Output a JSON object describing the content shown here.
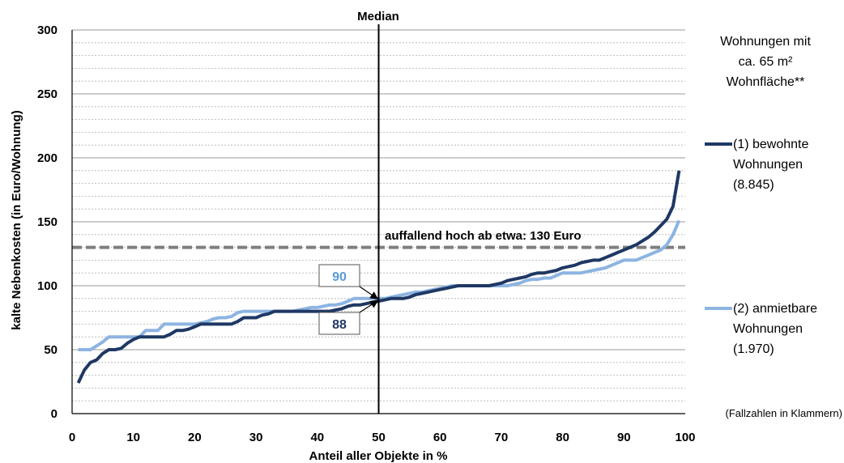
{
  "chart_data": {
    "type": "line",
    "title": "",
    "xlabel": "Anteil aller Objekte in %",
    "ylabel": "kalte Nebenkosten (in Euro/Wohnung)",
    "xlim": [
      0,
      100
    ],
    "ylim": [
      0,
      300
    ],
    "x_ticks": [
      0,
      10,
      20,
      30,
      40,
      50,
      60,
      70,
      80,
      90,
      100
    ],
    "y_ticks": [
      0,
      50,
      100,
      150,
      200,
      250,
      300
    ],
    "grid": "horizontal dashed, every 10 Euro",
    "legend_position": "right",
    "legend_title": "Wohnungen mit ca. 65 m² Wohnfläche**",
    "note": "(Fallzahlen in Klammern)",
    "median": {
      "x": 50,
      "label": "Median"
    },
    "threshold": {
      "y": 130,
      "label": "auffallend hoch ab etwa: 130 Euro",
      "color": "#7f7f7f"
    },
    "callouts": [
      {
        "text": "90",
        "series": 1,
        "value": 90,
        "color": "#5b9bd5"
      },
      {
        "text": "88",
        "series": 0,
        "value": 88,
        "color": "#1f3864"
      }
    ],
    "series": [
      {
        "name": "(1) bewohnte Wohnungen (8.845)",
        "color": "#1f3864",
        "points": [
          [
            1,
            24
          ],
          [
            2,
            34
          ],
          [
            3,
            40
          ],
          [
            4,
            42
          ],
          [
            5,
            47
          ],
          [
            6,
            50
          ],
          [
            7,
            50
          ],
          [
            8,
            51
          ],
          [
            9,
            55
          ],
          [
            10,
            58
          ],
          [
            11,
            60
          ],
          [
            12,
            60
          ],
          [
            13,
            60
          ],
          [
            14,
            60
          ],
          [
            15,
            60
          ],
          [
            16,
            62
          ],
          [
            17,
            65
          ],
          [
            18,
            65
          ],
          [
            19,
            66
          ],
          [
            20,
            68
          ],
          [
            21,
            70
          ],
          [
            22,
            70
          ],
          [
            23,
            70
          ],
          [
            24,
            70
          ],
          [
            25,
            70
          ],
          [
            26,
            70
          ],
          [
            27,
            72
          ],
          [
            28,
            75
          ],
          [
            29,
            75
          ],
          [
            30,
            75
          ],
          [
            31,
            77
          ],
          [
            32,
            78
          ],
          [
            33,
            80
          ],
          [
            34,
            80
          ],
          [
            35,
            80
          ],
          [
            36,
            80
          ],
          [
            37,
            80
          ],
          [
            38,
            80
          ],
          [
            39,
            80
          ],
          [
            40,
            80
          ],
          [
            41,
            80
          ],
          [
            42,
            80
          ],
          [
            43,
            81
          ],
          [
            44,
            82
          ],
          [
            45,
            84
          ],
          [
            46,
            85
          ],
          [
            47,
            85
          ],
          [
            48,
            86
          ],
          [
            49,
            87
          ],
          [
            50,
            88
          ],
          [
            51,
            89
          ],
          [
            52,
            90
          ],
          [
            53,
            90
          ],
          [
            54,
            90
          ],
          [
            55,
            91
          ],
          [
            56,
            93
          ],
          [
            57,
            94
          ],
          [
            58,
            95
          ],
          [
            59,
            96
          ],
          [
            60,
            97
          ],
          [
            61,
            98
          ],
          [
            62,
            99
          ],
          [
            63,
            100
          ],
          [
            64,
            100
          ],
          [
            65,
            100
          ],
          [
            66,
            100
          ],
          [
            67,
            100
          ],
          [
            68,
            100
          ],
          [
            69,
            101
          ],
          [
            70,
            102
          ],
          [
            71,
            104
          ],
          [
            72,
            105
          ],
          [
            73,
            106
          ],
          [
            74,
            107
          ],
          [
            75,
            109
          ],
          [
            76,
            110
          ],
          [
            77,
            110
          ],
          [
            78,
            111
          ],
          [
            79,
            112
          ],
          [
            80,
            114
          ],
          [
            81,
            115
          ],
          [
            82,
            116
          ],
          [
            83,
            118
          ],
          [
            84,
            119
          ],
          [
            85,
            120
          ],
          [
            86,
            120
          ],
          [
            87,
            122
          ],
          [
            88,
            124
          ],
          [
            89,
            126
          ],
          [
            90,
            128
          ],
          [
            91,
            130
          ],
          [
            92,
            132
          ],
          [
            93,
            135
          ],
          [
            94,
            138
          ],
          [
            95,
            142
          ],
          [
            96,
            147
          ],
          [
            97,
            152
          ],
          [
            98,
            162
          ],
          [
            99,
            190
          ]
        ]
      },
      {
        "name": "(2) anmietbare Wohnungen (1.970)",
        "color": "#8db4e2",
        "points": [
          [
            1,
            50
          ],
          [
            2,
            50
          ],
          [
            3,
            50
          ],
          [
            4,
            53
          ],
          [
            5,
            56
          ],
          [
            6,
            60
          ],
          [
            7,
            60
          ],
          [
            8,
            60
          ],
          [
            9,
            60
          ],
          [
            10,
            60
          ],
          [
            11,
            60
          ],
          [
            12,
            65
          ],
          [
            13,
            65
          ],
          [
            14,
            65
          ],
          [
            15,
            70
          ],
          [
            16,
            70
          ],
          [
            17,
            70
          ],
          [
            18,
            70
          ],
          [
            19,
            70
          ],
          [
            20,
            70
          ],
          [
            21,
            71
          ],
          [
            22,
            72
          ],
          [
            23,
            74
          ],
          [
            24,
            75
          ],
          [
            25,
            75
          ],
          [
            26,
            76
          ],
          [
            27,
            79
          ],
          [
            28,
            80
          ],
          [
            29,
            80
          ],
          [
            30,
            80
          ],
          [
            31,
            80
          ],
          [
            32,
            80
          ],
          [
            33,
            80
          ],
          [
            34,
            80
          ],
          [
            35,
            80
          ],
          [
            36,
            80
          ],
          [
            37,
            81
          ],
          [
            38,
            82
          ],
          [
            39,
            83
          ],
          [
            40,
            83
          ],
          [
            41,
            84
          ],
          [
            42,
            85
          ],
          [
            43,
            85
          ],
          [
            44,
            86
          ],
          [
            45,
            88
          ],
          [
            46,
            90
          ],
          [
            47,
            90
          ],
          [
            48,
            90
          ],
          [
            49,
            90
          ],
          [
            50,
            90
          ],
          [
            51,
            90
          ],
          [
            52,
            91
          ],
          [
            53,
            92
          ],
          [
            54,
            93
          ],
          [
            55,
            94
          ],
          [
            56,
            95
          ],
          [
            57,
            95
          ],
          [
            58,
            96
          ],
          [
            59,
            97
          ],
          [
            60,
            98
          ],
          [
            61,
            99
          ],
          [
            62,
            100
          ],
          [
            63,
            100
          ],
          [
            64,
            100
          ],
          [
            65,
            100
          ],
          [
            66,
            100
          ],
          [
            67,
            100
          ],
          [
            68,
            100
          ],
          [
            69,
            100
          ],
          [
            70,
            100
          ],
          [
            71,
            100
          ],
          [
            72,
            101
          ],
          [
            73,
            102
          ],
          [
            74,
            104
          ],
          [
            75,
            105
          ],
          [
            76,
            105
          ],
          [
            77,
            106
          ],
          [
            78,
            106
          ],
          [
            79,
            108
          ],
          [
            80,
            110
          ],
          [
            81,
            110
          ],
          [
            82,
            110
          ],
          [
            83,
            110
          ],
          [
            84,
            111
          ],
          [
            85,
            112
          ],
          [
            86,
            113
          ],
          [
            87,
            114
          ],
          [
            88,
            116
          ],
          [
            89,
            118
          ],
          [
            90,
            120
          ],
          [
            91,
            120
          ],
          [
            92,
            120
          ],
          [
            93,
            122
          ],
          [
            94,
            124
          ],
          [
            95,
            126
          ],
          [
            96,
            128
          ],
          [
            97,
            132
          ],
          [
            98,
            140
          ],
          [
            99,
            151
          ]
        ]
      }
    ]
  }
}
